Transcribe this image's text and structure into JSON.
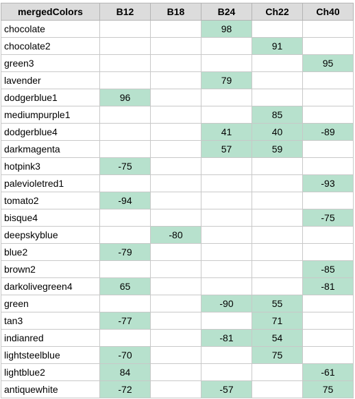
{
  "sheet": {
    "highlight_color": "#b7e1cd",
    "header_color": "#dcdcdc",
    "columns": [
      "mergedColors",
      "B12",
      "B18",
      "B24",
      "Ch22",
      "Ch40"
    ],
    "rows": [
      {
        "name": "chocolate",
        "cells": [
          "",
          "",
          "98",
          "",
          ""
        ]
      },
      {
        "name": "chocolate2",
        "cells": [
          "",
          "",
          "",
          "91",
          ""
        ]
      },
      {
        "name": "green3",
        "cells": [
          "",
          "",
          "",
          "",
          "95"
        ]
      },
      {
        "name": "lavender",
        "cells": [
          "",
          "",
          "79",
          "",
          ""
        ]
      },
      {
        "name": "dodgerblue1",
        "cells": [
          "96",
          "",
          "",
          "",
          ""
        ]
      },
      {
        "name": "mediumpurple1",
        "cells": [
          "",
          "",
          "",
          "85",
          ""
        ]
      },
      {
        "name": "dodgerblue4",
        "cells": [
          "",
          "",
          "41",
          "40",
          "-89"
        ]
      },
      {
        "name": "darkmagenta",
        "cells": [
          "",
          "",
          "57",
          "59",
          ""
        ]
      },
      {
        "name": "hotpink3",
        "cells": [
          "-75",
          "",
          "",
          "",
          ""
        ]
      },
      {
        "name": "palevioletred1",
        "cells": [
          "",
          "",
          "",
          "",
          "-93"
        ]
      },
      {
        "name": "tomato2",
        "cells": [
          "-94",
          "",
          "",
          "",
          ""
        ]
      },
      {
        "name": "bisque4",
        "cells": [
          "",
          "",
          "",
          "",
          "-75"
        ]
      },
      {
        "name": "deepskyblue",
        "cells": [
          "",
          "-80",
          "",
          "",
          ""
        ]
      },
      {
        "name": "blue2",
        "cells": [
          "-79",
          "",
          "",
          "",
          ""
        ]
      },
      {
        "name": "brown2",
        "cells": [
          "",
          "",
          "",
          "",
          "-85"
        ]
      },
      {
        "name": "darkolivegreen4",
        "cells": [
          "65",
          "",
          "",
          "",
          "-81"
        ]
      },
      {
        "name": "green",
        "cells": [
          "",
          "",
          "-90",
          "55",
          ""
        ]
      },
      {
        "name": "tan3",
        "cells": [
          "-77",
          "",
          "",
          "71",
          ""
        ]
      },
      {
        "name": "indianred",
        "cells": [
          "",
          "",
          "-81",
          "54",
          ""
        ]
      },
      {
        "name": "lightsteelblue",
        "cells": [
          "-70",
          "",
          "",
          "75",
          ""
        ]
      },
      {
        "name": "lightblue2",
        "cells": [
          "84",
          "",
          "",
          "",
          "-61"
        ]
      },
      {
        "name": "antiquewhite",
        "cells": [
          "-72",
          "",
          "-57",
          "",
          "75"
        ]
      }
    ]
  }
}
